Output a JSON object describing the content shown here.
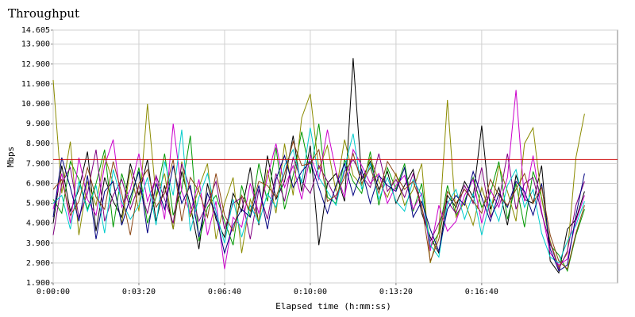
{
  "chart_data": {
    "type": "line",
    "title": "Throughput",
    "x_label": "Elapsed time (h:mm:ss)",
    "y_label": "Mbps",
    "xlim": [
      0,
      1317
    ],
    "ylim": [
      1.9,
      14.605
    ],
    "xticks": [
      {
        "value": 0,
        "label": "0:00:00"
      },
      {
        "value": 200,
        "label": "0:03:20"
      },
      {
        "value": 400,
        "label": "0:06:40"
      },
      {
        "value": 600,
        "label": "0:10:00"
      },
      {
        "value": 800,
        "label": "0:13:20"
      },
      {
        "value": 1000,
        "label": "0:16:40"
      }
    ],
    "yticks": [
      14.605,
      {
        "value": 13.9,
        "label": "13.900"
      },
      {
        "value": 12.9,
        "label": "12.900"
      },
      {
        "value": 11.9,
        "label": "11.900"
      },
      {
        "value": 10.9,
        "label": "10.900"
      },
      {
        "value": 9.9,
        "label": "9.900"
      },
      {
        "value": 8.9,
        "label": "8.900"
      },
      {
        "value": 7.9,
        "label": "7.900"
      },
      {
        "value": 6.9,
        "label": "6.900"
      },
      {
        "value": 5.9,
        "label": "5.900"
      },
      {
        "value": 4.9,
        "label": "4.900"
      },
      {
        "value": 3.9,
        "label": "3.900"
      },
      {
        "value": 2.9,
        "label": "2.900"
      },
      {
        "value": 1.9,
        "label": "1.900"
      }
    ],
    "grid": true,
    "threshold": {
      "value": 8.1,
      "color": "#cc0000"
    },
    "x": [
      0,
      20,
      40,
      60,
      80,
      100,
      120,
      140,
      160,
      180,
      200,
      220,
      240,
      260,
      280,
      300,
      320,
      340,
      360,
      380,
      400,
      420,
      440,
      460,
      480,
      500,
      520,
      540,
      560,
      580,
      600,
      620,
      640,
      660,
      680,
      700,
      720,
      740,
      760,
      780,
      800,
      820,
      840,
      860,
      880,
      900,
      920,
      940,
      960,
      980,
      1000,
      1020,
      1040,
      1060,
      1080,
      1100,
      1120,
      1140,
      1160,
      1180,
      1200,
      1220,
      1240
    ],
    "series": [
      {
        "color": "#000000",
        "values": [
          4.9,
          7.8,
          5.5,
          6.6,
          8.5,
          4.5,
          7.2,
          6.0,
          5.2,
          7.9,
          6.3,
          8.1,
          5.0,
          6.8,
          4.6,
          7.5,
          5.8,
          3.6,
          6.9,
          5.1,
          4.2,
          6.4,
          5.5,
          7.7,
          4.8,
          8.3,
          6.1,
          7.0,
          9.3,
          6.5,
          8.8,
          3.8,
          6.9,
          7.4,
          6.0,
          13.2,
          7.1,
          8.0,
          6.6,
          7.5,
          5.9,
          6.8,
          7.6,
          5.4,
          4.2,
          3.4,
          6.3,
          5.7,
          7.0,
          6.2,
          9.8,
          5.6,
          6.7,
          4.8,
          7.3,
          6.1,
          5.9,
          7.8,
          3.0,
          2.4,
          4.6,
          5.1,
          6.5
        ]
      },
      {
        "color": "#009900",
        "values": [
          6.1,
          5.4,
          8.0,
          7.1,
          5.6,
          6.9,
          8.6,
          4.7,
          7.4,
          5.9,
          7.7,
          4.9,
          6.2,
          8.4,
          5.3,
          6.6,
          9.3,
          4.0,
          5.7,
          6.3,
          5.0,
          3.8,
          6.8,
          5.2,
          7.9,
          6.0,
          8.7,
          5.6,
          7.3,
          9.5,
          7.4,
          9.9,
          6.2,
          5.9,
          8.1,
          7.0,
          6.4,
          8.5,
          5.8,
          7.7,
          6.6,
          7.9,
          5.5,
          6.9,
          3.7,
          4.4,
          6.8,
          5.3,
          6.0,
          7.2,
          5.7,
          6.4,
          8.0,
          5.1,
          6.9,
          4.7,
          7.5,
          6.2,
          3.8,
          3.3,
          2.5,
          4.3,
          5.6
        ]
      },
      {
        "color": "#8b8b00",
        "values": [
          12.1,
          6.4,
          9.0,
          4.3,
          7.0,
          5.8,
          8.3,
          6.9,
          4.9,
          7.6,
          5.5,
          10.9,
          6.2,
          7.4,
          4.6,
          8.0,
          5.2,
          6.7,
          7.9,
          4.1,
          5.9,
          7.2,
          3.4,
          6.1,
          5.0,
          7.6,
          5.4,
          8.9,
          6.3,
          10.2,
          11.4,
          7.6,
          8.8,
          6.5,
          9.1,
          7.3,
          6.8,
          8.2,
          7.0,
          6.2,
          7.4,
          5.8,
          6.6,
          7.9,
          2.9,
          4.5,
          11.1,
          5.2,
          6.0,
          4.8,
          6.7,
          5.3,
          7.8,
          6.5,
          5.0,
          8.9,
          9.7,
          6.1,
          4.0,
          2.7,
          3.4,
          8.2,
          10.4
        ]
      },
      {
        "color": "#cc00cc",
        "values": [
          5.6,
          7.4,
          4.9,
          8.2,
          6.1,
          5.3,
          7.8,
          9.1,
          5.7,
          6.6,
          8.4,
          6.0,
          7.2,
          5.1,
          9.9,
          6.5,
          5.4,
          7.1,
          4.3,
          6.0,
          2.6,
          5.2,
          4.7,
          6.9,
          5.4,
          7.2,
          8.9,
          6.7,
          7.8,
          6.1,
          8.3,
          7.1,
          9.6,
          7.5,
          6.2,
          8.6,
          7.8,
          6.9,
          7.4,
          5.9,
          6.8,
          7.3,
          5.6,
          6.4,
          3.5,
          5.8,
          4.5,
          5.0,
          6.3,
          7.1,
          4.9,
          6.6,
          5.7,
          7.2,
          11.6,
          6.0,
          8.3,
          5.5,
          3.4,
          2.8,
          3.1,
          5.0,
          6.3
        ]
      },
      {
        "color": "#800080",
        "values": [
          4.3,
          6.9,
          7.7,
          5.2,
          6.4,
          8.6,
          5.0,
          6.3,
          7.1,
          5.6,
          6.8,
          5.4,
          7.3,
          6.1,
          4.9,
          7.9,
          6.6,
          5.0,
          5.9,
          7.0,
          4.6,
          5.9,
          6.2,
          4.1,
          6.6,
          5.1,
          7.4,
          6.0,
          8.2,
          7.0,
          6.4,
          7.8,
          7.0,
          6.1,
          7.5,
          8.1,
          7.3,
          6.7,
          8.4,
          6.5,
          7.1,
          6.2,
          7.4,
          5.7,
          4.0,
          4.9,
          6.0,
          5.4,
          6.8,
          5.9,
          7.7,
          5.2,
          6.0,
          8.4,
          5.6,
          6.9,
          7.2,
          5.4,
          3.9,
          2.6,
          3.5,
          5.8,
          7.0
        ]
      },
      {
        "color": "#00cccc",
        "values": [
          5.9,
          6.3,
          4.6,
          7.0,
          5.5,
          6.8,
          4.4,
          7.6,
          6.0,
          5.1,
          5.8,
          7.2,
          4.8,
          8.0,
          6.3,
          9.6,
          4.5,
          6.2,
          7.4,
          5.5,
          3.9,
          6.1,
          4.2,
          5.8,
          4.9,
          6.4,
          5.7,
          7.8,
          8.6,
          6.9,
          9.7,
          7.2,
          6.5,
          5.8,
          7.7,
          9.4,
          6.6,
          7.9,
          6.1,
          7.2,
          6.0,
          5.5,
          7.1,
          6.3,
          3.8,
          3.2,
          5.9,
          6.6,
          5.1,
          6.4,
          4.3,
          6.1,
          5.0,
          6.8,
          7.6,
          5.7,
          6.6,
          4.4,
          3.2,
          2.9,
          4.0,
          4.8,
          6.0
        ]
      },
      {
        "color": "#000080",
        "values": [
          5.2,
          8.2,
          6.7,
          5.0,
          7.3,
          4.1,
          6.5,
          7.0,
          4.8,
          6.2,
          7.5,
          4.4,
          6.9,
          5.6,
          7.8,
          5.9,
          6.8,
          4.2,
          6.4,
          5.3,
          3.4,
          4.8,
          5.6,
          5.2,
          6.8,
          4.6,
          7.1,
          8.3,
          6.7,
          7.5,
          8.0,
          6.7,
          5.4,
          6.8,
          7.9,
          6.3,
          7.6,
          5.9,
          7.3,
          6.8,
          6.5,
          7.7,
          5.2,
          6.0,
          4.6,
          3.5,
          5.6,
          6.3,
          5.8,
          7.5,
          6.2,
          5.0,
          6.4,
          5.7,
          7.0,
          6.5,
          5.3,
          6.9,
          3.6,
          2.5,
          2.8,
          5.3,
          7.4
        ]
      },
      {
        "color": "#8b4513",
        "values": [
          6.6,
          7.1,
          5.3,
          6.0,
          7.7,
          6.2,
          5.6,
          8.0,
          6.4,
          4.3,
          6.9,
          7.6,
          5.7,
          6.4,
          8.1,
          5.0,
          7.2,
          6.5,
          5.2,
          7.4,
          5.3,
          4.5,
          6.3,
          5.5,
          7.0,
          6.8,
          6.2,
          7.4,
          9.0,
          7.8,
          7.9,
          8.6,
          6.0,
          6.3,
          7.2,
          8.4,
          6.9,
          7.7,
          6.4,
          8.0,
          7.3,
          6.6,
          7.0,
          5.8,
          3.0,
          4.1,
          6.5,
          5.9,
          6.6,
          6.0,
          5.4,
          7.1,
          6.3,
          5.8,
          6.6,
          7.4,
          5.9,
          6.7,
          4.3,
          3.0,
          2.6,
          4.4,
          5.8
        ]
      }
    ]
  }
}
